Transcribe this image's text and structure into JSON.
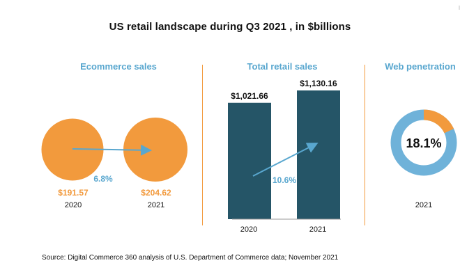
{
  "title": "US retail landscape during Q3 2021 , in $billions",
  "source": "Source: Digital Commerce 360 analysis of U.S. Department of Commerce data; November 2021",
  "colors": {
    "orange": "#f29a3d",
    "blue_text": "#59a7cf",
    "navy_bar": "#255567",
    "ring_light": "#6fb2d9",
    "text": "#111111"
  },
  "chart_data": [
    {
      "type": "bubble",
      "title": "Ecommerce sales",
      "categories": [
        "2020",
        "2021"
      ],
      "values": [
        191.57,
        204.62
      ],
      "value_labels": [
        "$191.57",
        "$204.62"
      ],
      "growth": "6.8%"
    },
    {
      "type": "bar",
      "title": "Total retail sales",
      "categories": [
        "2020",
        "2021"
      ],
      "values": [
        1021.66,
        1130.16
      ],
      "value_labels": [
        "$1,021.66",
        "$1,130.16"
      ],
      "growth": "10.6%"
    },
    {
      "type": "pie",
      "title": "Web penetration",
      "categories": [
        "2021"
      ],
      "values": [
        18.1
      ],
      "value_label": "18.1%"
    }
  ]
}
